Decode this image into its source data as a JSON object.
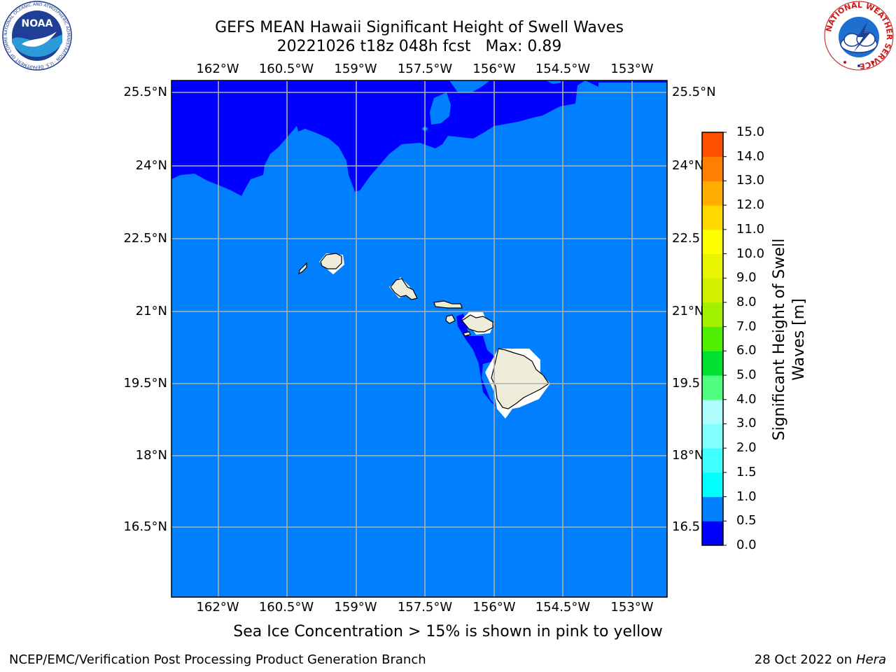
{
  "title": {
    "line1": "GEFS MEAN Hawaii Significant Height of Swell Waves",
    "line2": "20221026 t18z 048h fcst   Max: 0.89"
  },
  "axes": {
    "lon_labels": [
      "162°W",
      "160.5°W",
      "159°W",
      "157.5°W",
      "156°W",
      "154.5°W",
      "153°W"
    ],
    "lat_labels": [
      "25.5°N",
      "24°N",
      "22.5°N",
      "21°N",
      "19.5°N",
      "18°N",
      "16.5°N"
    ],
    "lat_labels_right": [
      "25.5°N",
      "24°N",
      "22.5",
      "21°N",
      "19.5",
      "18°N",
      "16.5"
    ]
  },
  "colorbar": {
    "title": "Significant Height of Swell\nWaves [m]",
    "tick_labels": [
      "0.0",
      "0.5",
      "1.0",
      "1.5",
      "2.0",
      "3.0",
      "4.0",
      "5.0",
      "6.0",
      "7.0",
      "8.0",
      "9.0",
      "10.0",
      "11.0",
      "12.0",
      "13.0",
      "14.0",
      "15.0"
    ],
    "colors": [
      "#0000ff",
      "#0080ff",
      "#00ffff",
      "#40ffff",
      "#80ffff",
      "#b0ffff",
      "#50ff80",
      "#00e030",
      "#50ee00",
      "#a0f000",
      "#d0f000",
      "#e8f400",
      "#ffff00",
      "#ffd800",
      "#ffae00",
      "#ff8000",
      "#ff5000",
      "#ff2000",
      "#ff0000"
    ]
  },
  "note": "Sea Ice Concentration > 15% is shown in pink to yellow",
  "footer": {
    "left": "NCEP/EMC/Verification Post Processing Product Generation Branch",
    "date": "28 Oct 2022 on ",
    "machine": "Hera"
  },
  "logos": {
    "noaa": "NOAA",
    "noaa_ring": "NATIONAL OCEANIC AND ATMOSPHERIC ADMINISTRATION · U.S. DEPARTMENT OF COMMERCE ·",
    "nws_ring": "NATIONAL WEATHER SERVICE"
  },
  "colors": {
    "sea_light": "#0080ff",
    "sea_dark": "#0000ff",
    "land": "#efedd9",
    "grid": "#b0b0b0"
  }
}
